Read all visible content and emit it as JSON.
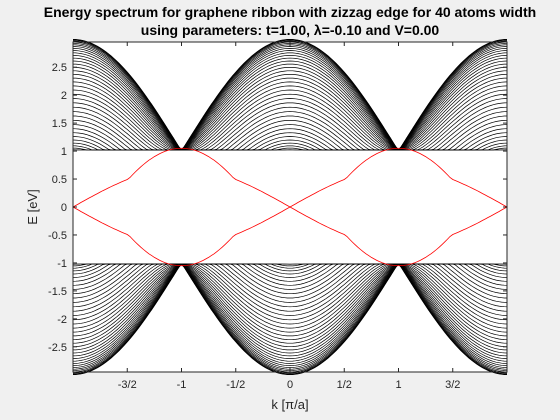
{
  "chart_data": {
    "type": "line",
    "title_line1": "Energy spectrum for graphene ribbon with zizzag edge for 40 atoms width",
    "title_line2": "using parameters: t=1.00, λ=-0.10 and V=0.00",
    "xlabel": "k [π/a]",
    "ylabel": "E [eV]",
    "xlim": [
      -2,
      2
    ],
    "ylim": [
      -2.95,
      2.95
    ],
    "xticks": [
      {
        "value": -1.5,
        "label": "-3/2"
      },
      {
        "value": -1,
        "label": "-1"
      },
      {
        "value": -0.5,
        "label": "-1/2"
      },
      {
        "value": 0,
        "label": "0"
      },
      {
        "value": 0.5,
        "label": "1/2"
      },
      {
        "value": 1,
        "label": "1"
      },
      {
        "value": 1.5,
        "label": "3/2"
      }
    ],
    "yticks": [
      {
        "value": 2.5,
        "label": "2.5"
      },
      {
        "value": 2,
        "label": "2"
      },
      {
        "value": 1.5,
        "label": "1.5"
      },
      {
        "value": 1,
        "label": "1"
      },
      {
        "value": 0.5,
        "label": "0.5"
      },
      {
        "value": 0,
        "label": "0"
      },
      {
        "value": -0.5,
        "label": "-0.5"
      },
      {
        "value": -1,
        "label": "-1"
      },
      {
        "value": -1.5,
        "label": "-1.5"
      },
      {
        "value": -2,
        "label": "-2"
      },
      {
        "value": -2.5,
        "label": "-2.5"
      }
    ],
    "bulk_band_count_per_sign": 39,
    "edge_band_count": 2,
    "parameters": {
      "t": 1.0,
      "lambda": -0.1,
      "V": 0.0,
      "width_atoms": 40
    },
    "bulk_band_color": "#000000",
    "edge_band_color": "#ff0000",
    "grid": false,
    "legend": "none"
  }
}
